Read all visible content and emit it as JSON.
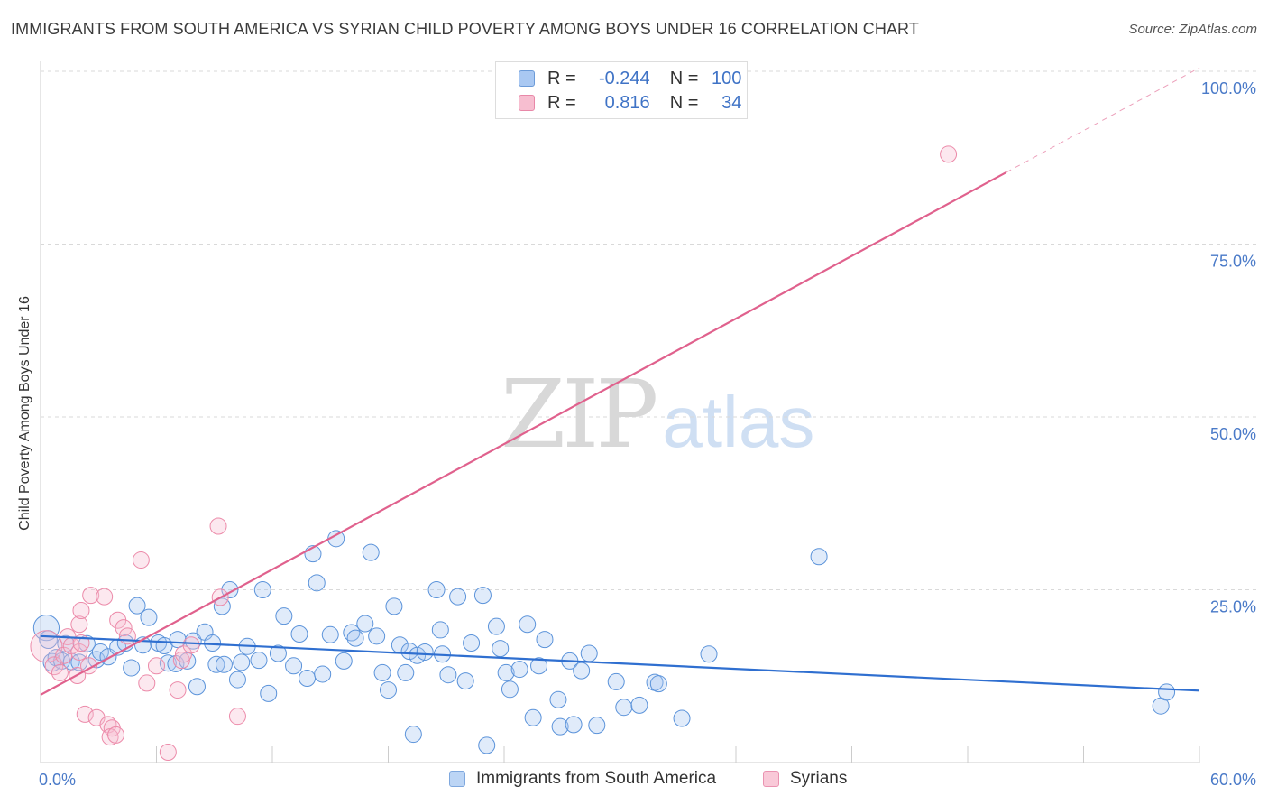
{
  "title": "IMMIGRANTS FROM SOUTH AMERICA VS SYRIAN CHILD POVERTY AMONG BOYS UNDER 16 CORRELATION CHART",
  "source": "Source: ZipAtlas.com",
  "watermark": {
    "zip": "ZIP",
    "atlas": "atlas"
  },
  "legend_top": {
    "rows": [
      {
        "r_label": "R =",
        "r_value": "-0.244",
        "n_label": "N =",
        "n_value": "100",
        "color": "#a9c8f2",
        "border": "#6c9bd8"
      },
      {
        "r_label": "R =",
        "r_value": "0.816",
        "n_label": "N =",
        "n_value": "34",
        "color": "#f7bed0",
        "border": "#e888a8"
      }
    ]
  },
  "legend_bottom": [
    {
      "label": "Immigrants from South America",
      "color": "#bcd5f5",
      "border": "#7fa8de"
    },
    {
      "label": "Syrians",
      "color": "#f9c9d8",
      "border": "#ea93b1"
    }
  ],
  "colors": {
    "blue": "#5b93da",
    "blue_fill": "rgba(167,199,242,0.35)",
    "blue_line": "#2f6fd0",
    "pink": "#ec8aa9",
    "pink_fill": "rgba(247,190,208,0.35)",
    "pink_line": "#e0618d",
    "grid": "#d9d9d9",
    "axis_text": "#4a7ac8"
  },
  "chart_data": {
    "type": "scatter",
    "title": "IMMIGRANTS FROM SOUTH AMERICA VS SYRIAN CHILD POVERTY AMONG BOYS UNDER 16 CORRELATION CHART",
    "xlabel": "",
    "ylabel": "Child Poverty Among Boys Under 16",
    "xlim": [
      0,
      60
    ],
    "ylim": [
      0,
      100
    ],
    "x_ticks": [
      "0.0%",
      "60.0%"
    ],
    "y_ticks": [
      {
        "value": 25,
        "label": "25.0%"
      },
      {
        "value": 50,
        "label": "50.0%"
      },
      {
        "value": 75,
        "label": "75.0%"
      },
      {
        "value": 100,
        "label": "100.0%"
      }
    ],
    "grid": true,
    "legend": "bottom",
    "series": [
      {
        "name": "Immigrants from South America",
        "trend": {
          "x0": 0,
          "y0": 18.3,
          "x1": 60,
          "y1": 10.4,
          "dashed_from": null
        },
        "points": [
          [
            0.3,
            19.5,
            16
          ],
          [
            0.4,
            17.8,
            11
          ],
          [
            0.6,
            14.5,
            11
          ],
          [
            0.8,
            15.2,
            10
          ],
          [
            1.1,
            14.7,
            10
          ],
          [
            1.3,
            17.2,
            10
          ],
          [
            1.6,
            14.6,
            10
          ],
          [
            2.0,
            14.5,
            10
          ],
          [
            2.4,
            17.2,
            10
          ],
          [
            2.9,
            14.9,
            10
          ],
          [
            3.1,
            16.0,
            10
          ],
          [
            3.5,
            15.3,
            10
          ],
          [
            4.0,
            16.7,
            10
          ],
          [
            4.4,
            17.3,
            10
          ],
          [
            4.7,
            13.7,
            10
          ],
          [
            5.0,
            22.7,
            10
          ],
          [
            5.3,
            17.0,
            10
          ],
          [
            5.6,
            21.0,
            10
          ],
          [
            6.1,
            17.3,
            10
          ],
          [
            6.4,
            16.9,
            10
          ],
          [
            6.6,
            14.4,
            10
          ],
          [
            7.0,
            14.3,
            10
          ],
          [
            7.1,
            17.8,
            10
          ],
          [
            7.6,
            14.7,
            10
          ],
          [
            7.9,
            17.6,
            10
          ],
          [
            8.1,
            11.0,
            10
          ],
          [
            8.5,
            18.9,
            10
          ],
          [
            8.9,
            17.3,
            10
          ],
          [
            9.1,
            14.2,
            10
          ],
          [
            9.5,
            14.2,
            10
          ],
          [
            9.4,
            22.6,
            10
          ],
          [
            9.8,
            25.0,
            10
          ],
          [
            10.2,
            12.0,
            10
          ],
          [
            10.4,
            14.5,
            10
          ],
          [
            10.7,
            16.8,
            10
          ],
          [
            11.3,
            14.8,
            10
          ],
          [
            11.5,
            25.0,
            10
          ],
          [
            11.8,
            10.0,
            10
          ],
          [
            12.3,
            15.8,
            10
          ],
          [
            12.6,
            21.2,
            10
          ],
          [
            13.1,
            14.0,
            10
          ],
          [
            13.4,
            18.6,
            10
          ],
          [
            13.8,
            12.2,
            10
          ],
          [
            14.1,
            30.2,
            10
          ],
          [
            14.3,
            26.0,
            10
          ],
          [
            14.6,
            12.8,
            10
          ],
          [
            15.0,
            18.5,
            10
          ],
          [
            15.3,
            32.4,
            10
          ],
          [
            15.7,
            14.7,
            10
          ],
          [
            16.1,
            18.8,
            10
          ],
          [
            16.3,
            18.0,
            10
          ],
          [
            16.8,
            20.1,
            10
          ],
          [
            17.1,
            30.4,
            10
          ],
          [
            17.4,
            18.3,
            10
          ],
          [
            17.7,
            13.0,
            10
          ],
          [
            18.0,
            10.5,
            10
          ],
          [
            18.3,
            22.6,
            10
          ],
          [
            18.6,
            17.0,
            10
          ],
          [
            18.9,
            13.0,
            10
          ],
          [
            19.1,
            16.1,
            10
          ],
          [
            19.3,
            4.1,
            10
          ],
          [
            19.5,
            15.5,
            10
          ],
          [
            19.9,
            16.0,
            10
          ],
          [
            20.5,
            25.0,
            10
          ],
          [
            20.7,
            19.2,
            10
          ],
          [
            20.8,
            15.7,
            10
          ],
          [
            21.1,
            12.7,
            10
          ],
          [
            21.6,
            24.0,
            10
          ],
          [
            22.0,
            11.8,
            10
          ],
          [
            22.3,
            17.3,
            10
          ],
          [
            22.9,
            24.2,
            10
          ],
          [
            23.1,
            2.5,
            10
          ],
          [
            23.6,
            19.7,
            10
          ],
          [
            23.8,
            16.5,
            10
          ],
          [
            24.1,
            13.0,
            10
          ],
          [
            24.3,
            10.6,
            10
          ],
          [
            24.8,
            13.5,
            10
          ],
          [
            25.2,
            20.0,
            10
          ],
          [
            25.5,
            6.5,
            10
          ],
          [
            25.8,
            14.0,
            10
          ],
          [
            26.1,
            17.8,
            10
          ],
          [
            26.8,
            9.1,
            10
          ],
          [
            26.9,
            5.2,
            10
          ],
          [
            27.4,
            14.7,
            10
          ],
          [
            27.6,
            5.5,
            10
          ],
          [
            28.0,
            13.3,
            10
          ],
          [
            28.4,
            15.8,
            10
          ],
          [
            28.8,
            5.4,
            10
          ],
          [
            29.8,
            11.7,
            10
          ],
          [
            30.2,
            8.0,
            10
          ],
          [
            31.0,
            8.3,
            10
          ],
          [
            31.8,
            11.6,
            10
          ],
          [
            32.0,
            11.4,
            10
          ],
          [
            33.2,
            6.4,
            10
          ],
          [
            34.6,
            15.7,
            10
          ],
          [
            40.3,
            29.8,
            10
          ],
          [
            58.0,
            8.2,
            10
          ],
          [
            58.3,
            10.2,
            10
          ]
        ]
      },
      {
        "name": "Syrians",
        "trend": {
          "x0": 0,
          "y0": 9.8,
          "x1": 60,
          "y1": 100.5,
          "dashed_from": 50
        },
        "points": [
          [
            0.3,
            16.8,
            20
          ],
          [
            0.7,
            14.0,
            11
          ],
          [
            1.0,
            13.0,
            10
          ],
          [
            1.2,
            15.5,
            10
          ],
          [
            1.4,
            18.2,
            10
          ],
          [
            1.6,
            16.9,
            10
          ],
          [
            1.9,
            12.6,
            10
          ],
          [
            2.0,
            16.0,
            10
          ],
          [
            2.1,
            17.3,
            10
          ],
          [
            2.5,
            14.0,
            10
          ],
          [
            2.0,
            20.0,
            10
          ],
          [
            2.1,
            22.0,
            10
          ],
          [
            2.3,
            7.0,
            10
          ],
          [
            2.6,
            24.2,
            10
          ],
          [
            2.9,
            6.5,
            10
          ],
          [
            3.3,
            24.0,
            10
          ],
          [
            3.5,
            5.5,
            10
          ],
          [
            3.7,
            5.0,
            10
          ],
          [
            3.6,
            3.7,
            10
          ],
          [
            3.9,
            4.0,
            10
          ],
          [
            4.0,
            20.6,
            10
          ],
          [
            4.3,
            19.5,
            10
          ],
          [
            4.5,
            18.3,
            10
          ],
          [
            5.2,
            29.3,
            10
          ],
          [
            5.5,
            11.5,
            10
          ],
          [
            6.0,
            14.0,
            10
          ],
          [
            6.6,
            1.5,
            10
          ],
          [
            7.1,
            10.5,
            10
          ],
          [
            7.3,
            14.8,
            10
          ],
          [
            7.4,
            15.7,
            10
          ],
          [
            7.8,
            17.0,
            10
          ],
          [
            9.2,
            34.2,
            10
          ],
          [
            9.3,
            23.9,
            10
          ],
          [
            10.2,
            6.7,
            10
          ],
          [
            47.0,
            88.0,
            10
          ]
        ]
      }
    ]
  }
}
